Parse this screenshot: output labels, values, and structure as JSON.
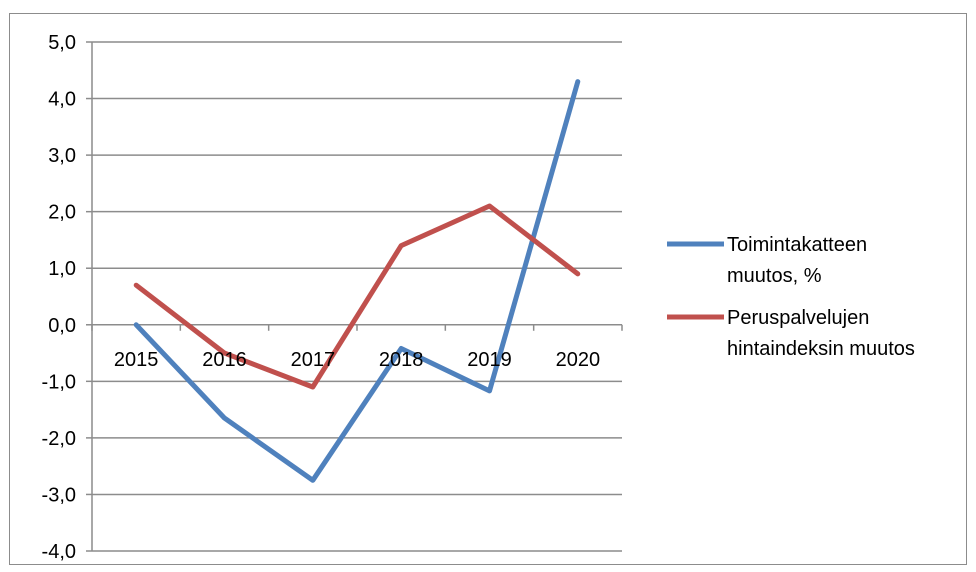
{
  "chart_data": {
    "type": "line",
    "categories": [
      "2015",
      "2016",
      "2017",
      "2018",
      "2019",
      "2020"
    ],
    "ylim": [
      -4.0,
      5.0
    ],
    "y_ticks": [
      "5,0",
      "4,0",
      "3,0",
      "2,0",
      "1,0",
      "0,0",
      "-1,0",
      "-2,0",
      "-3,0",
      "-4,0"
    ],
    "y_tick_values": [
      5,
      4,
      3,
      2,
      1,
      0,
      -1,
      -2,
      -3,
      -4
    ],
    "grid": true,
    "legend_position": "right",
    "series": [
      {
        "name_lines": [
          "Toimintakatteen",
          "muutos, %"
        ],
        "color": "#4f81bd",
        "values": [
          0.0,
          -1.65,
          -2.75,
          -0.42,
          -1.17,
          4.3
        ]
      },
      {
        "name_lines": [
          "Peruspalvelujen",
          "hintaindeksin muutos"
        ],
        "color": "#c0504d",
        "values": [
          0.7,
          -0.5,
          -1.1,
          1.4,
          2.1,
          0.9
        ]
      }
    ]
  }
}
